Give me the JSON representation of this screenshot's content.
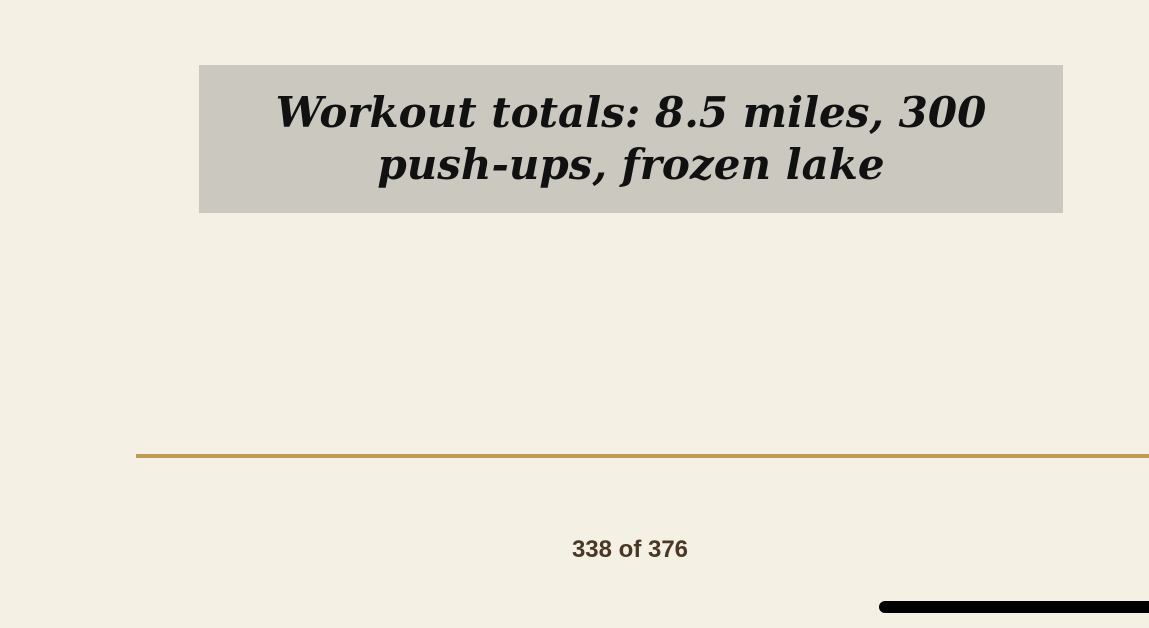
{
  "reader": {
    "caption": "Workout totals: 8.5 miles, 300 push-ups, frozen lake",
    "page_indicator": "338 of 376",
    "current_page": 338,
    "total_pages": 376
  },
  "colors": {
    "background": "#f4f0e4",
    "caption_box": "#cbc8bf",
    "divider": "#bf9a52",
    "page_text": "#4a3826"
  }
}
